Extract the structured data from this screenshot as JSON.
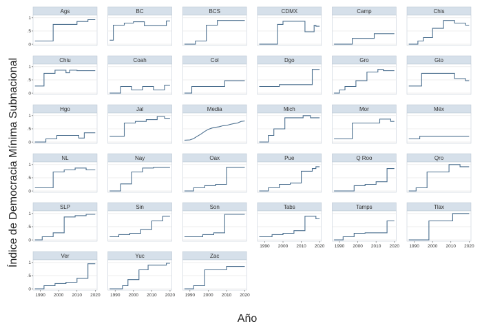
{
  "chart_data": {
    "type": "line",
    "layout": "facet-grid",
    "ylabel": "Índice de Democracia Mínima Subnacional",
    "xlabel": "Año",
    "xlim": [
      1986,
      2021
    ],
    "ylim": [
      -0.05,
      1.1
    ],
    "x_ticks": [
      1990,
      2000,
      2010,
      2020
    ],
    "y_ticks": [
      0,
      0.5,
      1
    ],
    "y_tick_labels": [
      "0",
      ".5",
      "1"
    ],
    "colors": {
      "line": "#4a6e8e",
      "strip": "#d6e0ea",
      "panel_bg": "#ffffff",
      "grid": "#e6e6e6",
      "border": "#b8c4d0"
    },
    "panels": [
      {
        "name": "Ags",
        "x": [
          1987,
          1997,
          1997,
          2010,
          2010,
          2016,
          2016,
          2020
        ],
        "y": [
          0.12,
          0.12,
          0.75,
          0.75,
          0.86,
          0.86,
          0.93,
          0.93
        ]
      },
      {
        "name": "BC",
        "x": [
          1987,
          1989,
          1989,
          1995,
          1995,
          2000,
          2000,
          2006,
          2006,
          2018,
          2018,
          2020
        ],
        "y": [
          0.15,
          0.15,
          0.72,
          0.72,
          0.8,
          0.8,
          0.85,
          0.85,
          0.7,
          0.7,
          0.88,
          0.88
        ]
      },
      {
        "name": "BCS",
        "x": [
          1987,
          1993,
          1993,
          1999,
          1999,
          2005,
          2005,
          2020
        ],
        "y": [
          0.0,
          0.0,
          0.12,
          0.12,
          0.72,
          0.72,
          0.9,
          0.9
        ]
      },
      {
        "name": "CDMX",
        "x": [
          1987,
          1997,
          1997,
          2000,
          2000,
          2012,
          2012,
          2017,
          2017,
          2018,
          2018,
          2020
        ],
        "y": [
          0.0,
          0.0,
          0.75,
          0.75,
          0.87,
          0.87,
          0.47,
          0.47,
          0.72,
          0.72,
          0.68,
          0.68
        ]
      },
      {
        "name": "Camp",
        "x": [
          1987,
          1997,
          1997,
          2009,
          2009,
          2020
        ],
        "y": [
          0.0,
          0.0,
          0.22,
          0.22,
          0.4,
          0.4
        ]
      },
      {
        "name": "Chis",
        "x": [
          1987,
          1992,
          1992,
          1995,
          1995,
          2000,
          2000,
          2006,
          2006,
          2012,
          2012,
          2018,
          2018,
          2020
        ],
        "y": [
          0.0,
          0.0,
          0.12,
          0.12,
          0.25,
          0.25,
          0.6,
          0.6,
          0.9,
          0.9,
          0.8,
          0.8,
          0.72,
          0.72
        ]
      },
      {
        "name": "Chiu",
        "x": [
          1987,
          1992,
          1992,
          1998,
          1998,
          2004,
          2004,
          2006,
          2006,
          2010,
          2010,
          2020
        ],
        "y": [
          0.27,
          0.27,
          0.75,
          0.75,
          0.87,
          0.87,
          0.77,
          0.77,
          0.87,
          0.87,
          0.85,
          0.85
        ]
      },
      {
        "name": "Coah",
        "x": [
          1987,
          1993,
          1993,
          1999,
          1999,
          2005,
          2005,
          2011,
          2011,
          2017,
          2017,
          2020
        ],
        "y": [
          0.0,
          0.0,
          0.25,
          0.25,
          0.12,
          0.12,
          0.25,
          0.25,
          0.12,
          0.12,
          0.3,
          0.3
        ]
      },
      {
        "name": "Col",
        "x": [
          1987,
          1991,
          1991,
          2009,
          2009,
          2020
        ],
        "y": [
          0.0,
          0.0,
          0.25,
          0.25,
          0.47,
          0.47
        ]
      },
      {
        "name": "Dgo",
        "x": [
          1987,
          1998,
          1998,
          2016,
          2016,
          2020
        ],
        "y": [
          0.25,
          0.25,
          0.32,
          0.32,
          0.9,
          0.9
        ]
      },
      {
        "name": "Gro",
        "x": [
          1987,
          1990,
          1990,
          1993,
          1993,
          1999,
          1999,
          2005,
          2005,
          2011,
          2011,
          2014,
          2014,
          2020
        ],
        "y": [
          0.0,
          0.0,
          0.12,
          0.12,
          0.25,
          0.25,
          0.47,
          0.47,
          0.8,
          0.8,
          0.9,
          0.9,
          0.85,
          0.85
        ]
      },
      {
        "name": "Gto",
        "x": [
          1987,
          1994,
          1994,
          2012,
          2012,
          2018,
          2018,
          2020
        ],
        "y": [
          0.27,
          0.27,
          0.75,
          0.75,
          0.55,
          0.55,
          0.47,
          0.47
        ]
      },
      {
        "name": "Hgo",
        "x": [
          1987,
          1993,
          1993,
          1999,
          1999,
          2011,
          2011,
          2014,
          2014,
          2020
        ],
        "y": [
          0.0,
          0.0,
          0.12,
          0.12,
          0.25,
          0.25,
          0.15,
          0.15,
          0.35,
          0.35
        ]
      },
      {
        "name": "Jal",
        "x": [
          1987,
          1995,
          1995,
          2001,
          2001,
          2007,
          2007,
          2013,
          2013,
          2017,
          2017,
          2020
        ],
        "y": [
          0.22,
          0.22,
          0.72,
          0.72,
          0.78,
          0.78,
          0.85,
          0.85,
          0.97,
          0.97,
          0.9,
          0.9
        ]
      },
      {
        "name": "Media",
        "x": [
          1987,
          1990,
          1992,
          1994,
          1996,
          1998,
          2000,
          2002,
          2004,
          2006,
          2008,
          2010,
          2012,
          2014,
          2016,
          2018,
          2020
        ],
        "y": [
          0.07,
          0.08,
          0.13,
          0.22,
          0.3,
          0.4,
          0.48,
          0.53,
          0.56,
          0.58,
          0.62,
          0.63,
          0.67,
          0.7,
          0.72,
          0.78,
          0.8
        ]
      },
      {
        "name": "Mich",
        "x": [
          1987,
          1992,
          1992,
          1995,
          1995,
          2001,
          2001,
          2011,
          2011,
          2015,
          2015,
          2020
        ],
        "y": [
          0.0,
          0.0,
          0.25,
          0.25,
          0.5,
          0.5,
          0.92,
          0.92,
          1.0,
          1.0,
          0.92,
          0.92
        ]
      },
      {
        "name": "Mor",
        "x": [
          1987,
          1997,
          1997,
          2012,
          2012,
          2018,
          2018,
          2020
        ],
        "y": [
          0.12,
          0.12,
          0.72,
          0.72,
          0.87,
          0.87,
          0.78,
          0.78
        ]
      },
      {
        "name": "Méx",
        "x": [
          1987,
          1993,
          1993,
          2020
        ],
        "y": [
          0.12,
          0.12,
          0.22,
          0.22
        ]
      },
      {
        "name": "NL",
        "x": [
          1987,
          1997,
          1997,
          2003,
          2003,
          2009,
          2009,
          2015,
          2015,
          2020
        ],
        "y": [
          0.12,
          0.12,
          0.72,
          0.72,
          0.8,
          0.8,
          0.87,
          0.87,
          0.8,
          0.8
        ]
      },
      {
        "name": "Nay",
        "x": [
          1987,
          1993,
          1993,
          1999,
          1999,
          2005,
          2005,
          2011,
          2011,
          2020
        ],
        "y": [
          0.0,
          0.0,
          0.27,
          0.27,
          0.72,
          0.72,
          0.87,
          0.87,
          0.9,
          0.9
        ]
      },
      {
        "name": "Oax",
        "x": [
          1987,
          1992,
          1992,
          1998,
          1998,
          2004,
          2004,
          2010,
          2010,
          2020
        ],
        "y": [
          0.0,
          0.0,
          0.12,
          0.12,
          0.2,
          0.2,
          0.25,
          0.25,
          0.9,
          0.9
        ]
      },
      {
        "name": "Pue",
        "x": [
          1987,
          1992,
          1992,
          1998,
          1998,
          2004,
          2004,
          2010,
          2010,
          2016,
          2016,
          2018,
          2018,
          2020
        ],
        "y": [
          0.0,
          0.0,
          0.12,
          0.12,
          0.25,
          0.25,
          0.3,
          0.3,
          0.75,
          0.75,
          0.85,
          0.85,
          0.92,
          0.92
        ]
      },
      {
        "name": "Q Roo",
        "x": [
          1987,
          1998,
          1998,
          2004,
          2004,
          2010,
          2010,
          2016,
          2016,
          2020
        ],
        "y": [
          0.0,
          0.0,
          0.2,
          0.2,
          0.25,
          0.25,
          0.35,
          0.35,
          0.85,
          0.85
        ]
      },
      {
        "name": "Qro",
        "x": [
          1987,
          1991,
          1991,
          1997,
          1997,
          2009,
          2009,
          2015,
          2015,
          2020
        ],
        "y": [
          0.0,
          0.0,
          0.12,
          0.12,
          0.72,
          0.72,
          1.0,
          1.0,
          0.92,
          0.92
        ]
      },
      {
        "name": "SLP",
        "x": [
          1987,
          1991,
          1991,
          1997,
          1997,
          2003,
          2003,
          2009,
          2009,
          2015,
          2015,
          2020
        ],
        "y": [
          0.0,
          0.0,
          0.12,
          0.12,
          0.27,
          0.27,
          0.87,
          0.87,
          0.92,
          0.92,
          0.97,
          0.97
        ]
      },
      {
        "name": "Sin",
        "x": [
          1987,
          1992,
          1992,
          1998,
          1998,
          2004,
          2004,
          2010,
          2010,
          2016,
          2016,
          2020
        ],
        "y": [
          0.12,
          0.12,
          0.2,
          0.2,
          0.25,
          0.25,
          0.4,
          0.4,
          0.72,
          0.72,
          0.9,
          0.9
        ]
      },
      {
        "name": "Son",
        "x": [
          1987,
          1997,
          1997,
          2003,
          2003,
          2009,
          2009,
          2020
        ],
        "y": [
          0.12,
          0.12,
          0.2,
          0.2,
          0.27,
          0.27,
          0.97,
          0.97
        ]
      },
      {
        "name": "Tabs",
        "x": [
          1987,
          1994,
          1994,
          2000,
          2000,
          2006,
          2006,
          2012,
          2012,
          2018,
          2018,
          2020
        ],
        "y": [
          0.12,
          0.12,
          0.2,
          0.2,
          0.25,
          0.25,
          0.35,
          0.35,
          0.9,
          0.9,
          0.8,
          0.8
        ]
      },
      {
        "name": "Tamps",
        "x": [
          1987,
          1992,
          1992,
          1998,
          1998,
          2004,
          2004,
          2016,
          2016,
          2020
        ],
        "y": [
          0.0,
          0.0,
          0.12,
          0.12,
          0.25,
          0.25,
          0.27,
          0.27,
          0.72,
          0.72
        ]
      },
      {
        "name": "Tlax",
        "x": [
          1987,
          1998,
          1998,
          2011,
          2011,
          2020
        ],
        "y": [
          0.0,
          0.0,
          0.72,
          0.72,
          1.0,
          1.0
        ]
      },
      {
        "name": "Ver",
        "x": [
          1987,
          1992,
          1992,
          1998,
          1998,
          2004,
          2004,
          2010,
          2010,
          2016,
          2016,
          2020
        ],
        "y": [
          0.0,
          0.0,
          0.12,
          0.12,
          0.2,
          0.2,
          0.25,
          0.25,
          0.4,
          0.4,
          0.95,
          0.95
        ]
      },
      {
        "name": "Yuc",
        "x": [
          1987,
          1994,
          1994,
          1997,
          1997,
          2003,
          2003,
          2008,
          2008,
          2018,
          2018,
          2020
        ],
        "y": [
          0.0,
          0.0,
          0.12,
          0.12,
          0.35,
          0.35,
          0.72,
          0.72,
          0.9,
          0.9,
          0.97,
          0.97
        ]
      },
      {
        "name": "Zac",
        "x": [
          1987,
          1992,
          1992,
          1998,
          1998,
          2010,
          2010,
          2020
        ],
        "y": [
          0.0,
          0.0,
          0.12,
          0.12,
          0.72,
          0.72,
          0.85,
          0.85
        ]
      }
    ]
  }
}
